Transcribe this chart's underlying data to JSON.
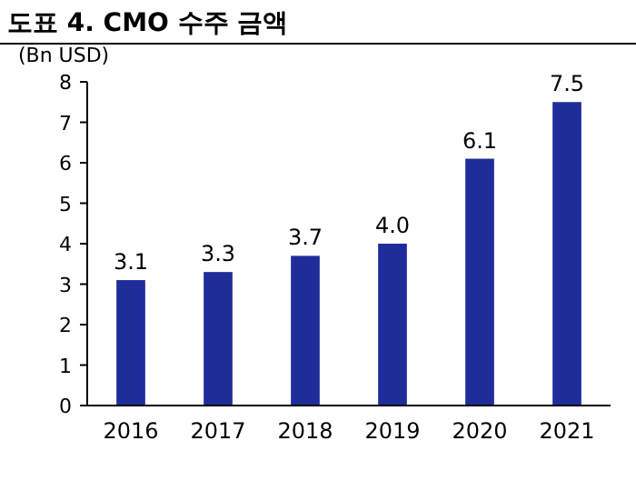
{
  "chart_data": {
    "type": "bar",
    "title": "도표 4.  CMO 수주 금액",
    "ylabel": "(Bn USD)",
    "categories": [
      "2016",
      "2017",
      "2018",
      "2019",
      "2020",
      "2021"
    ],
    "values": [
      3.1,
      3.3,
      3.7,
      4.0,
      6.1,
      7.5
    ],
    "value_labels": [
      "3.1",
      "3.3",
      "3.7",
      "4.0",
      "6.1",
      "7.5"
    ],
    "color": "#1f2d9b",
    "ylim": [
      0,
      8
    ],
    "yticks": [
      0,
      1,
      2,
      3,
      4,
      5,
      6,
      7,
      8
    ],
    "grid": false
  }
}
